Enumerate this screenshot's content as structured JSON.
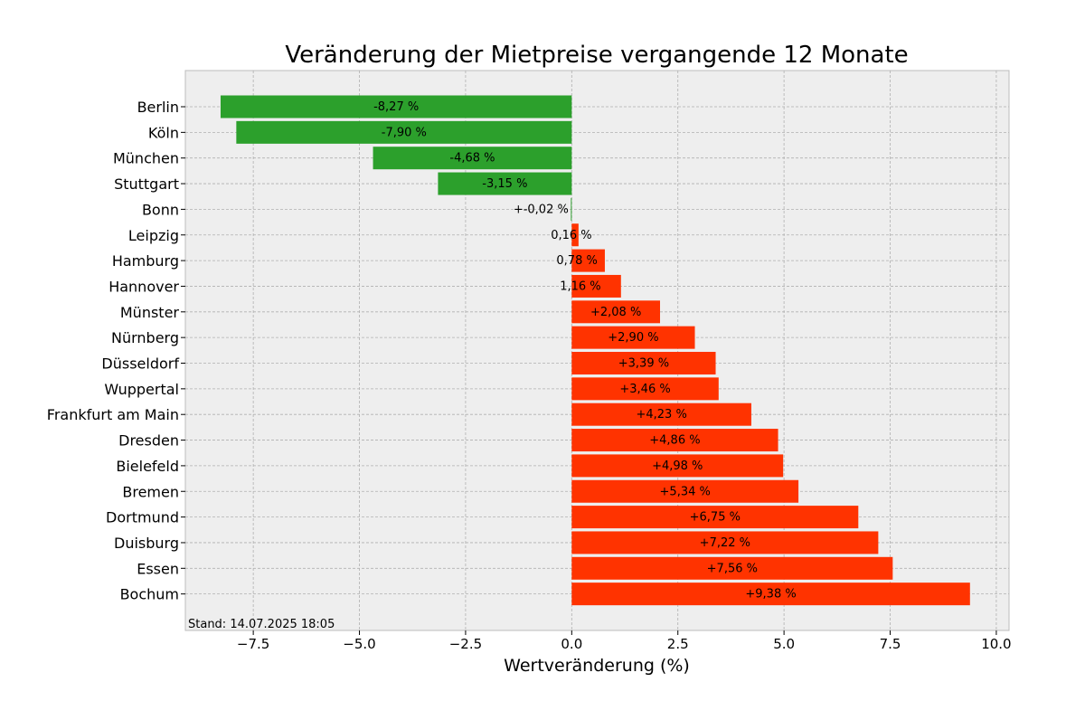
{
  "chart_data": {
    "type": "bar",
    "orientation": "horizontal",
    "title": "Veränderung der Mietpreise vergangende 12 Monate",
    "xlabel": "Wertveränderung (%)",
    "ylabel": "",
    "xlim": [
      -9.1,
      10.3
    ],
    "xticks": [
      -7.5,
      -5.0,
      -2.5,
      0.0,
      2.5,
      5.0,
      7.5,
      10.0
    ],
    "xtick_labels": [
      "−7.5",
      "−5.0",
      "−2.5",
      "0.0",
      "2.5",
      "5.0",
      "7.5",
      "10.0"
    ],
    "grid": true,
    "colors": {
      "negative": "#2ca02c",
      "positive": "#ff3300",
      "background": "#eeeeee"
    },
    "categories": [
      "Berlin",
      "Köln",
      "München",
      "Stuttgart",
      "Bonn",
      "Leipzig",
      "Hamburg",
      "Hannover",
      "Münster",
      "Nürnberg",
      "Düsseldorf",
      "Wuppertal",
      "Frankfurt am Main",
      "Dresden",
      "Bielefeld",
      "Bremen",
      "Dortmund",
      "Duisburg",
      "Essen",
      "Bochum"
    ],
    "values": [
      -8.27,
      -7.9,
      -4.68,
      -3.15,
      -0.02,
      0.16,
      0.78,
      1.16,
      2.08,
      2.9,
      3.39,
      3.46,
      4.23,
      4.86,
      4.98,
      5.34,
      6.75,
      7.22,
      7.56,
      9.38
    ],
    "value_labels": [
      "-8,27 %",
      "-7,90 %",
      "-4,68 %",
      "-3,15 %",
      "+-0,02 %",
      "0,16 %",
      "0,78 %",
      "1,16 %",
      "+2,08 %",
      "+2,90 %",
      "+3,39 %",
      "+3,46 %",
      "+4,23 %",
      "+4,86 %",
      "+4,98 %",
      "+5,34 %",
      "+6,75 %",
      "+7,22 %",
      "+7,56 %",
      "+9,38 %"
    ],
    "footnote": "Stand: 14.07.2025 18:05"
  }
}
